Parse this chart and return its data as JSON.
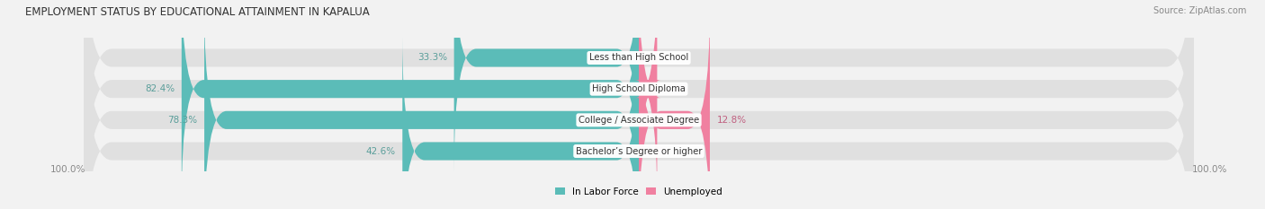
{
  "title": "EMPLOYMENT STATUS BY EDUCATIONAL ATTAINMENT IN KAPALUA",
  "source": "Source: ZipAtlas.com",
  "categories": [
    "Less than High School",
    "High School Diploma",
    "College / Associate Degree",
    "Bachelor’s Degree or higher"
  ],
  "in_labor_force": [
    33.3,
    82.4,
    78.3,
    42.6
  ],
  "unemployed": [
    0.0,
    3.3,
    12.8,
    0.0
  ],
  "bar_color_labor": "#5bbcb8",
  "bar_color_unemployed": "#f080a0",
  "label_color_labor": "#5a9e9a",
  "label_color_unemployed": "#c06080",
  "bg_color": "#f2f2f2",
  "bar_bg_color": "#e0e0e0",
  "axis_label_left": "100.0%",
  "axis_label_right": "100.0%",
  "axis_max": 100.0,
  "title_fontsize": 8.5,
  "source_fontsize": 7,
  "bar_label_fontsize": 7.5,
  "category_fontsize": 7.2,
  "legend_fontsize": 7.5,
  "figsize": [
    14.06,
    2.33
  ],
  "dpi": 100
}
